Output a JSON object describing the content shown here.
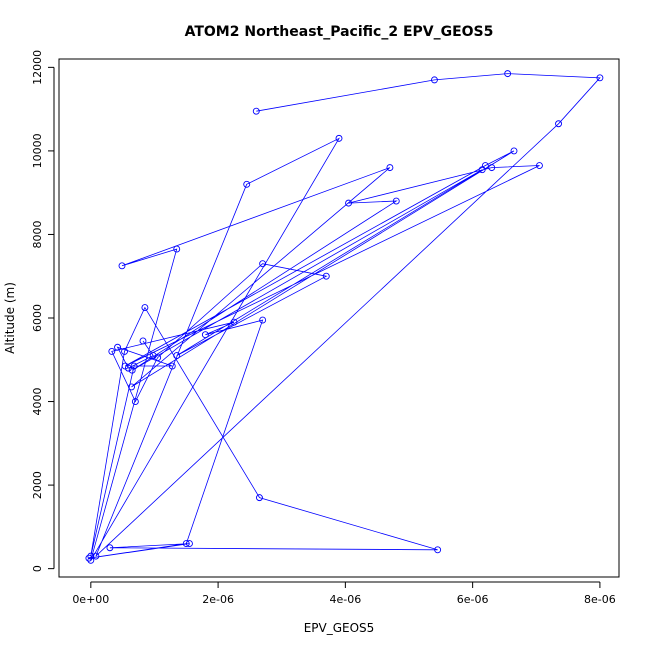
{
  "chart_data": {
    "type": "line",
    "title": "ATOM2 Northeast_Pacific_2 EPV_GEOS5",
    "xlabel": "EPV_GEOS5",
    "ylabel": "Altitude (m)",
    "xlim": [
      -5e-07,
      8.3e-06
    ],
    "ylim": [
      -200,
      12200
    ],
    "xticks": [
      0,
      2e-06,
      4e-06,
      6e-06,
      8e-06
    ],
    "xtick_labels": [
      "0e+00",
      "2e-06",
      "4e-06",
      "6e-06",
      "8e-06"
    ],
    "yticks": [
      0,
      2000,
      4000,
      6000,
      8000,
      10000,
      12000
    ],
    "ytick_labels": [
      "0",
      "2000",
      "4000",
      "6000",
      "8000",
      "10000",
      "12000"
    ],
    "grid": false,
    "series": [
      {
        "color": "#0000ff",
        "marker": "open-circle",
        "x": [
          2.6e-06,
          5.4e-06,
          6.55e-06,
          8e-06,
          7.35e-06,
          8e-08,
          2.45e-06,
          3.9e-06,
          0,
          1.35e-06,
          4.9e-07,
          4.7e-06,
          6.4e-07,
          6.65e-06,
          6.2e-06,
          5.4e-07,
          7.05e-06,
          6.3e-06,
          4.05e-06,
          4.8e-06,
          6.5e-07,
          6.15e-06,
          1.35e-06,
          3.7e-06,
          2.7e-06,
          1.05e-06,
          7e-07,
          3.3e-07,
          2.25e-06,
          1.8e-06,
          2.7e-06,
          1.5e-06,
          -3e-08,
          1.55e-06,
          3e-07,
          5.45e-06,
          2.65e-06,
          8.5e-07,
          5.3e-07,
          0,
          6.8e-07,
          1.28e-06,
          4.2e-07,
          5.9e-07,
          9.8e-07,
          8.2e-07
        ],
        "y": [
          10950,
          11700,
          11850,
          11750,
          10650,
          300,
          9200,
          10300,
          200,
          7650,
          7250,
          9600,
          4350,
          10000,
          9650,
          4850,
          9650,
          9600,
          8750,
          8800,
          4750,
          9550,
          5100,
          7000,
          7300,
          5050,
          4000,
          5200,
          5900,
          5600,
          5950,
          600,
          250,
          600,
          500,
          450,
          1700,
          6250,
          5200,
          300,
          4850,
          4850,
          5300,
          4800,
          5100,
          5450
        ]
      }
    ]
  }
}
